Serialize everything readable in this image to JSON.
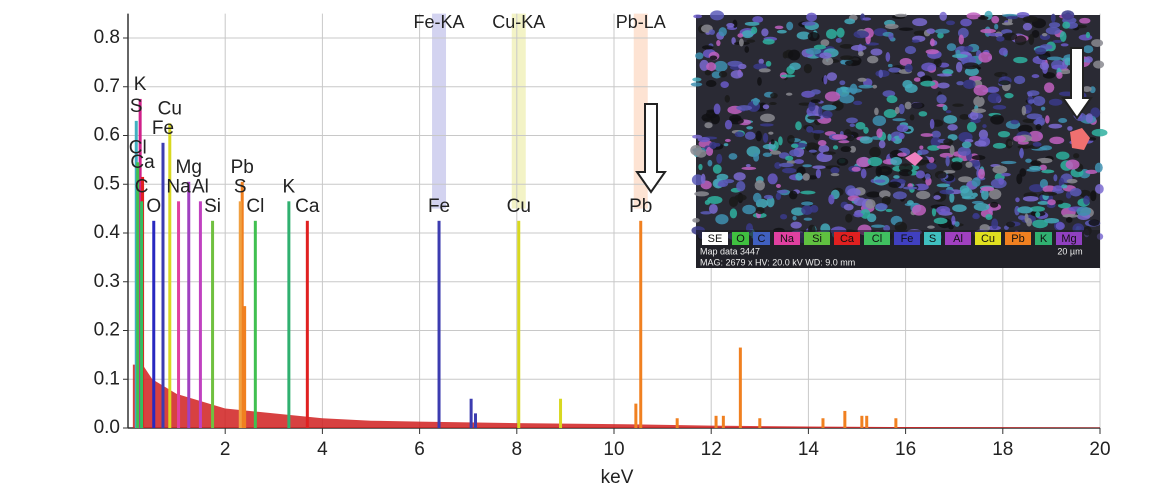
{
  "chart_data": {
    "type": "spectrum",
    "xlabel": "keV",
    "xlim": [
      0,
      20
    ],
    "xticks": [
      2,
      4,
      6,
      8,
      10,
      12,
      14,
      16,
      18,
      20
    ],
    "ylim": [
      0,
      0.85
    ],
    "yticks": [
      {
        "value": 0,
        "label": "0.0"
      },
      0.1,
      0.2,
      0.3,
      0.4,
      0.5,
      0.6,
      0.7,
      0.8
    ],
    "grid": true,
    "peaks": [
      {
        "label": "K",
        "x": 0.25,
        "value": 0.675,
        "color": "#d0208a"
      },
      {
        "label": "S",
        "x": 0.17,
        "value": 0.63,
        "color": "#40b0c0"
      },
      {
        "label": "Cu",
        "x": 0.86,
        "value": 0.625,
        "color": "#d8d820"
      },
      {
        "label": "Fe",
        "x": 0.72,
        "value": 0.585,
        "color": "#3c3cb0"
      },
      {
        "label": "Cl",
        "x": 0.2,
        "value": 0.545,
        "color": "#40c050"
      },
      {
        "label": "Ca",
        "x": 0.3,
        "value": 0.515,
        "color": "#e02020"
      },
      {
        "label": "C",
        "x": 0.28,
        "value": 0.465,
        "color": "#30c060"
      },
      {
        "label": "O",
        "x": 0.53,
        "value": 0.425,
        "color": "#2828c0"
      },
      {
        "label": "Mg",
        "x": 1.25,
        "value": 0.505,
        "color": "#a040c0"
      },
      {
        "label": "Na",
        "x": 1.04,
        "value": 0.465,
        "color": "#e040a0"
      },
      {
        "label": "Al",
        "x": 1.49,
        "value": 0.465,
        "color": "#c040c0"
      },
      {
        "label": "Si",
        "x": 1.74,
        "value": 0.425,
        "color": "#70c040"
      },
      {
        "label": "Pb",
        "x": 2.35,
        "value": 0.505,
        "color": "#f08020"
      },
      {
        "label": "S",
        "x": 2.31,
        "value": 0.465,
        "color": "#f0a040"
      },
      {
        "label": "Cl",
        "x": 2.62,
        "value": 0.425,
        "color": "#40c050"
      },
      {
        "label": "K",
        "x": 3.31,
        "value": 0.465,
        "color": "#30b070"
      },
      {
        "label": "Ca",
        "x": 3.69,
        "value": 0.425,
        "color": "#e02020"
      },
      {
        "label": "Fe",
        "x": 6.4,
        "value": 0.425,
        "color": "#3c3cb0"
      },
      {
        "label": "Cu",
        "x": 8.04,
        "value": 0.425,
        "color": "#d8d820"
      },
      {
        "label": "Pb",
        "x": 10.55,
        "value": 0.425,
        "color": "#f08020"
      }
    ],
    "line_labels": [
      {
        "label": "Fe-KA",
        "x": 6.4,
        "color": "#c8c8ec"
      },
      {
        "label": "Cu-KA",
        "x": 8.04,
        "color": "#f0f0b8"
      },
      {
        "label": "Pb-LA",
        "x": 10.55,
        "color": "#fcdcc8"
      }
    ],
    "minor_peaks": [
      {
        "x": 2.4,
        "value": 0.25,
        "color": "#f08020"
      },
      {
        "x": 7.06,
        "value": 0.06,
        "color": "#3c3cb0"
      },
      {
        "x": 7.15,
        "value": 0.03,
        "color": "#3c3cb0"
      },
      {
        "x": 8.9,
        "value": 0.06,
        "color": "#d8d820"
      },
      {
        "x": 10.45,
        "value": 0.05,
        "color": "#f08020"
      },
      {
        "x": 11.3,
        "value": 0.02,
        "color": "#f08020"
      },
      {
        "x": 12.1,
        "value": 0.025,
        "color": "#f08020"
      },
      {
        "x": 12.25,
        "value": 0.025,
        "color": "#f08020"
      },
      {
        "x": 12.6,
        "value": 0.165,
        "color": "#f08020"
      },
      {
        "x": 13.0,
        "value": 0.02,
        "color": "#f08020"
      },
      {
        "x": 14.3,
        "value": 0.02,
        "color": "#f08020"
      },
      {
        "x": 14.75,
        "value": 0.035,
        "color": "#f08020"
      },
      {
        "x": 15.1,
        "value": 0.025,
        "color": "#f08020"
      },
      {
        "x": 15.2,
        "value": 0.025,
        "color": "#f08020"
      },
      {
        "x": 15.8,
        "value": 0.02,
        "color": "#f08020"
      }
    ],
    "background": {
      "color": "#d02020",
      "x": [
        0.1,
        0.3,
        0.5,
        1,
        2,
        3,
        4,
        5,
        6,
        8,
        10,
        12,
        14,
        16,
        20
      ],
      "values": [
        0.13,
        0.13,
        0.1,
        0.07,
        0.04,
        0.03,
        0.02,
        0.015,
        0.013,
        0.01,
        0.008,
        0.005,
        0.003,
        0.002,
        0.001
      ]
    },
    "inset": {
      "legend": [
        {
          "label": "SE",
          "color": "#ffffff"
        },
        {
          "label": "O",
          "color": "#40c040"
        },
        {
          "label": "C",
          "color": "#4060c0"
        },
        {
          "label": "Na",
          "color": "#e040a0"
        },
        {
          "label": "Si",
          "color": "#60c040"
        },
        {
          "label": "Ca",
          "color": "#e02020"
        },
        {
          "label": "Cl",
          "color": "#40c060"
        },
        {
          "label": "Fe",
          "color": "#4040c0"
        },
        {
          "label": "S",
          "color": "#40c0c0"
        },
        {
          "label": "Al",
          "color": "#a040c0"
        },
        {
          "label": "Cu",
          "color": "#e0e020"
        },
        {
          "label": "Pb",
          "color": "#f08020"
        },
        {
          "label": "K",
          "color": "#30b070"
        },
        {
          "label": "Mg",
          "color": "#9040c0"
        }
      ],
      "caption": "Map data 3447",
      "info": "MAG: 2679 x HV: 20.0 kV WD: 9.0 mm",
      "scale": "20 µm"
    }
  }
}
